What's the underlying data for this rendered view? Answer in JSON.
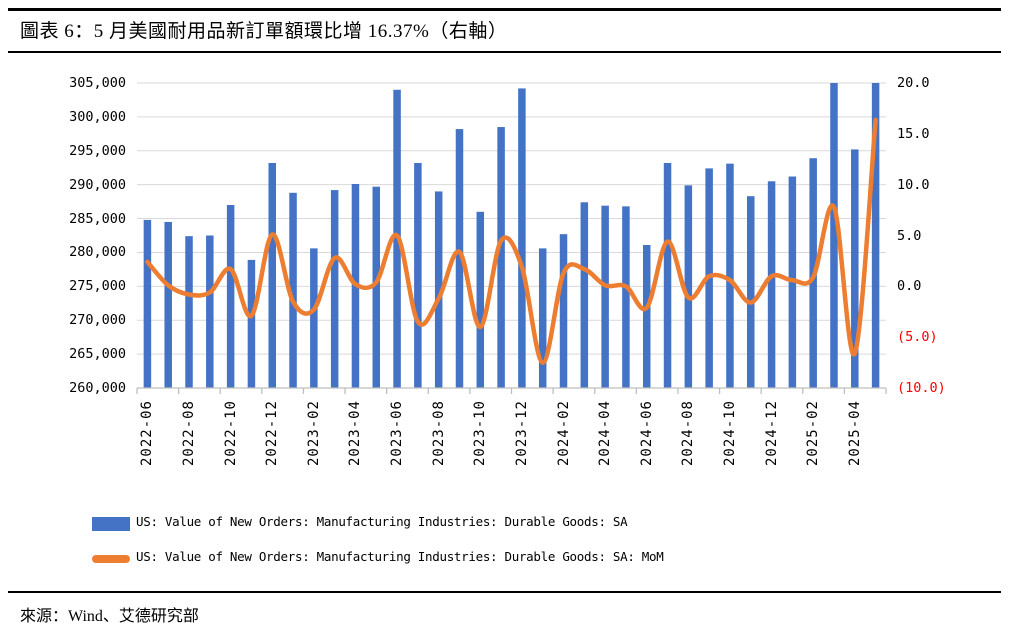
{
  "figure": {
    "title": "圖表 6：5 月美國耐用品新訂單額環比增 16.37%（右軸）",
    "source": "來源：Wind、艾德研究部"
  },
  "chart_data": {
    "type": "bar",
    "subtype": "combo-bar-line-dual-axis",
    "title": "圖表 6：5 月美國耐用品新訂單額環比增 16.37%（右軸）",
    "grid": true,
    "legend_position": "bottom",
    "categories": [
      "2022-06",
      "2022-07",
      "2022-08",
      "2022-09",
      "2022-10",
      "2022-11",
      "2022-12",
      "2023-01",
      "2023-02",
      "2023-03",
      "2023-04",
      "2023-05",
      "2023-06",
      "2023-07",
      "2023-08",
      "2023-09",
      "2023-10",
      "2023-11",
      "2023-12",
      "2024-01",
      "2024-02",
      "2024-03",
      "2024-04",
      "2024-05",
      "2024-06",
      "2024-07",
      "2024-08",
      "2024-09",
      "2024-10",
      "2024-11",
      "2024-12",
      "2025-01",
      "2025-02",
      "2025-03",
      "2025-04",
      "2025-05"
    ],
    "x_tick_labels": [
      "2022-06",
      "2022-08",
      "2022-10",
      "2022-12",
      "2023-02",
      "2023-04",
      "2023-06",
      "2023-08",
      "2023-10",
      "2023-12",
      "2024-02",
      "2024-04",
      "2024-06",
      "2024-08",
      "2024-10",
      "2024-12",
      "2025-02",
      "2025-04"
    ],
    "series": [
      {
        "name": "US: Value of New Orders: Manufacturing Industries: Durable Goods: SA",
        "type": "bar",
        "axis": "left",
        "color": "#4472C4",
        "values": [
          284800,
          284500,
          282400,
          282500,
          287000,
          278900,
          293200,
          288800,
          280600,
          289200,
          290100,
          289700,
          304000,
          293200,
          289000,
          298200,
          286000,
          298500,
          304200,
          280600,
          282700,
          287400,
          286900,
          286800,
          281100,
          293200,
          289900,
          292400,
          293100,
          288300,
          290500,
          291200,
          293900,
          305000,
          295200,
          305000
        ]
      },
      {
        "name": "US: Value of New Orders: Manufacturing Industries: Durable Goods: SA: MoM",
        "type": "line",
        "axis": "right",
        "color": "#ED7D31",
        "values": [
          2.4,
          0.1,
          -0.8,
          -0.6,
          1.7,
          -2.9,
          5.1,
          -1.5,
          -2.3,
          2.8,
          0.2,
          0.4,
          5.0,
          -3.5,
          -1.2,
          3.4,
          -4.0,
          4.5,
          1.9,
          -7.5,
          1.3,
          1.7,
          0.1,
          0.0,
          -2.1,
          4.4,
          -1.1,
          1.0,
          0.6,
          -1.6,
          1.0,
          0.6,
          0.9,
          7.8,
          -6.6,
          16.37
        ]
      }
    ],
    "left_axis": {
      "min": 260000,
      "max": 305000,
      "step": 5000,
      "tick_labels": [
        "305,000",
        "300,000",
        "295,000",
        "290,000",
        "285,000",
        "280,000",
        "275,000",
        "270,000",
        "265,000",
        "260,000"
      ]
    },
    "right_axis": {
      "min": -10,
      "max": 20,
      "step": 5,
      "tick_labels": [
        "20.0",
        "15.0",
        "10.0",
        "5.0",
        "0.0",
        "(5.0)",
        "(10.0)"
      ],
      "negative_color": "#FF0000"
    },
    "colors": {
      "bar": "#4472C4",
      "line": "#ED7D31",
      "gridline": "#D9D9D9",
      "axis_line": "#BFBFBF",
      "negative_tick": "#FF0000"
    }
  }
}
